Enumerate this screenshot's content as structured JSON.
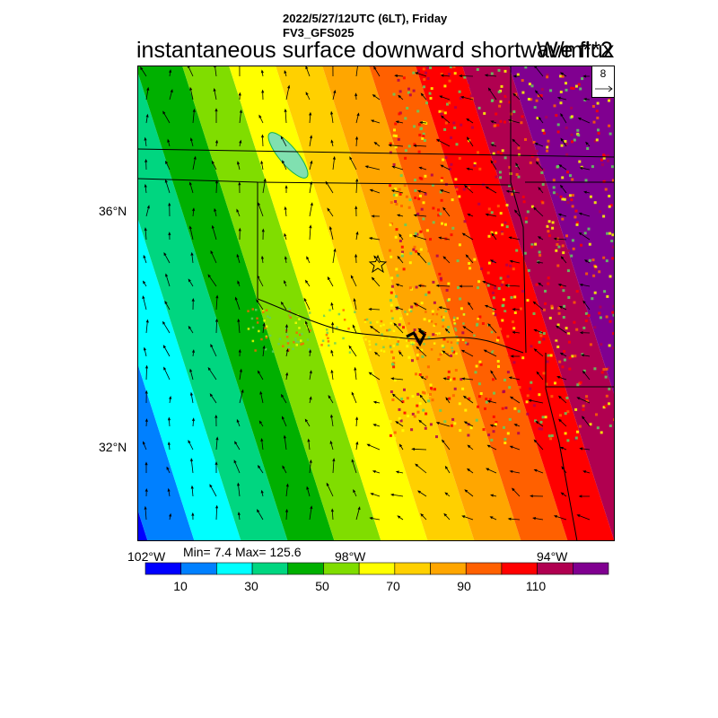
{
  "header": {
    "line1": "2022/5/27/12UTC (6LT), Friday",
    "line2": "FV3_GFS025"
  },
  "title": "instantaneous surface downward shortwave flux",
  "units": "W/m**2",
  "vector_ref": {
    "value": "8"
  },
  "axes": {
    "lat_labels": [
      "36°N",
      "32°N"
    ],
    "lon_labels": [
      "102°W",
      "98°W",
      "94°W"
    ]
  },
  "stats": "Min= 7.4 Max= 125.6",
  "colorbar": {
    "colors": [
      "#0000ff",
      "#0080ff",
      "#00ffff",
      "#00d680",
      "#00b000",
      "#80dd00",
      "#ffff00",
      "#ffd000",
      "#ffa600",
      "#ff6000",
      "#ff0000",
      "#b00050",
      "#800090"
    ],
    "tick_labels": [
      "10",
      "30",
      "50",
      "70",
      "90",
      "110"
    ]
  },
  "palette": {
    "pixel_speckle": "#ff4040",
    "green_speckle": "#60d060"
  }
}
